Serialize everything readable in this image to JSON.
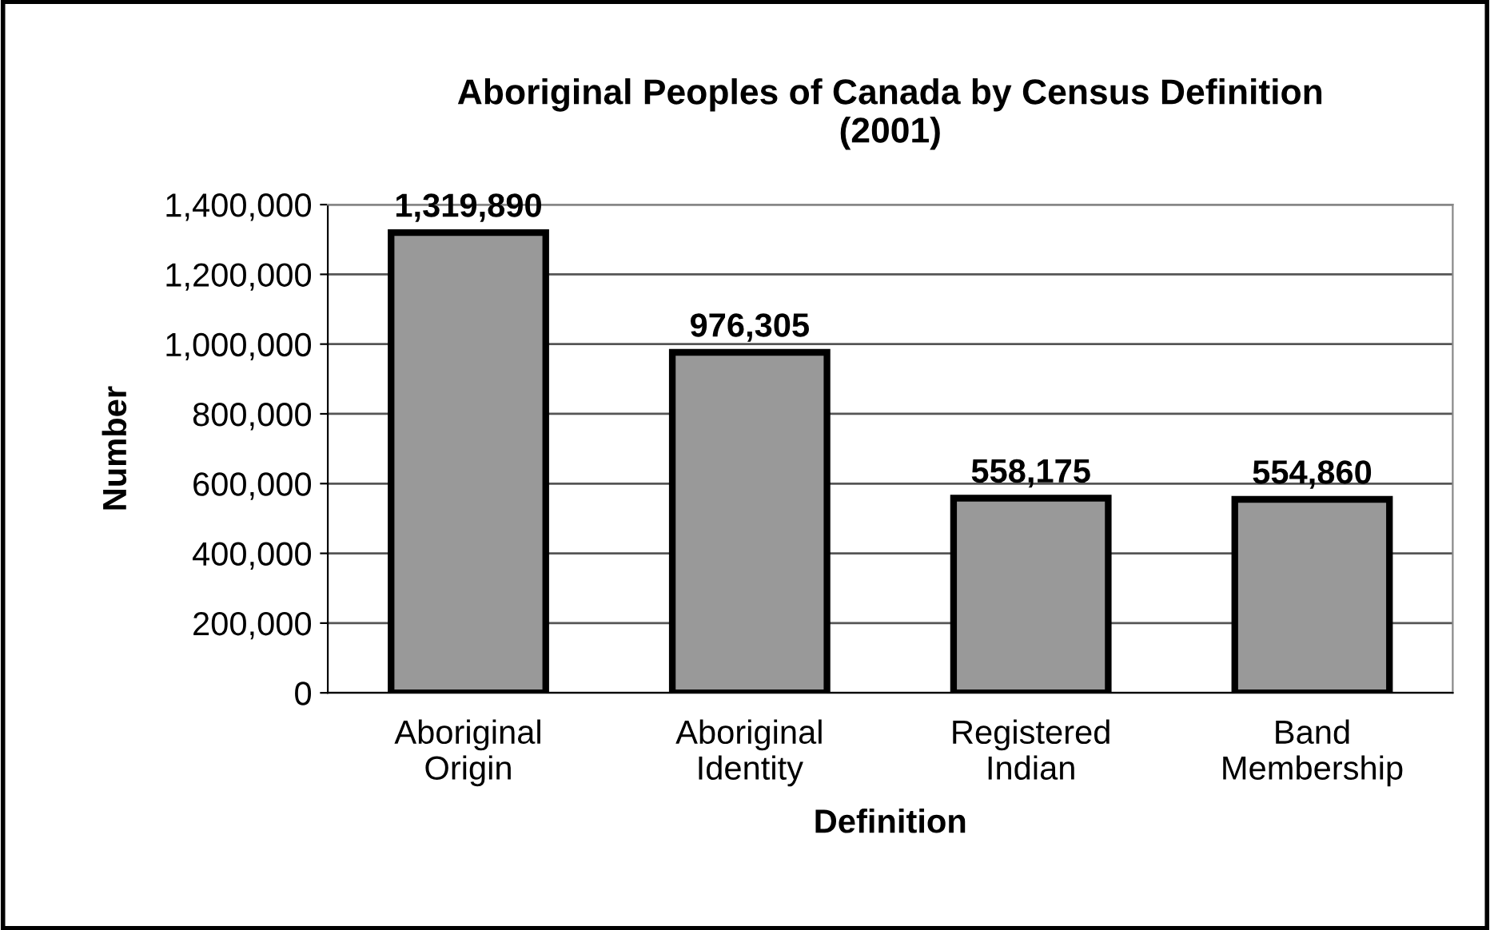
{
  "chart_data": {
    "type": "bar",
    "title": "Aboriginal Peoples of Canada by Census Definition\n(2001)",
    "xlabel": "Definition",
    "ylabel": "Number",
    "categories": [
      "Aboriginal\nOrigin",
      "Aboriginal\nIdentity",
      "Registered\nIndian",
      "Band\nMembership"
    ],
    "values": [
      1319890,
      976305,
      558175,
      554860
    ],
    "value_labels": [
      "1,319,890",
      "976,305",
      "558,175",
      "554,860"
    ],
    "color": "#999999",
    "ylim": [
      0,
      1400000
    ],
    "yticks": [
      {
        "value": 0,
        "label": "0"
      },
      {
        "value": 200000,
        "label": "200,000"
      },
      {
        "value": 400000,
        "label": "400,000"
      },
      {
        "value": 600000,
        "label": "600,000"
      },
      {
        "value": 800000,
        "label": "800,000"
      },
      {
        "value": 1000000,
        "label": "1,000,000"
      },
      {
        "value": 1200000,
        "label": "1,200,000"
      },
      {
        "value": 1400000,
        "label": "1,400,000"
      }
    ],
    "grid": "y",
    "legend": false
  }
}
